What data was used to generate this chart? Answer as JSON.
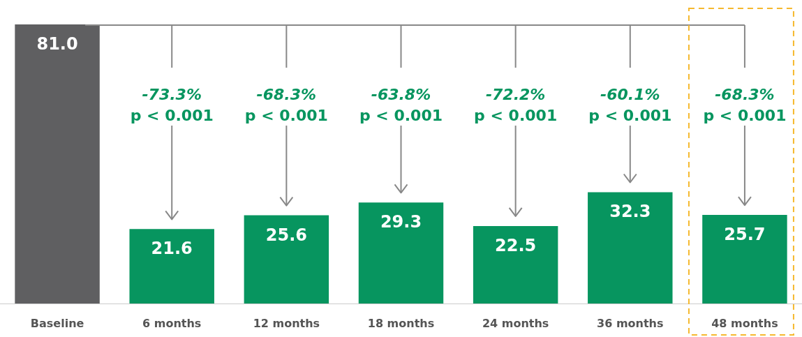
{
  "chart_data": {
    "type": "bar",
    "categories": [
      "Baseline",
      "6 months",
      "12 months",
      "18 months",
      "24 months",
      "36 months",
      "48 months"
    ],
    "values": [
      81.0,
      21.6,
      25.6,
      29.3,
      22.5,
      32.3,
      25.7
    ],
    "value_labels": [
      "81.0",
      "21.6",
      "25.6",
      "29.3",
      "22.5",
      "32.3",
      "25.7"
    ],
    "colors": [
      "#5f5f61",
      "#07955f",
      "#07955f",
      "#07955f",
      "#07955f",
      "#07955f",
      "#07955f"
    ],
    "annotations": [
      {
        "text": "-73.3%",
        "x": "6 months"
      },
      {
        "text": "p < 0.001",
        "x": "6 months"
      },
      {
        "text": "-68.3%",
        "x": "12 months"
      },
      {
        "text": "p < 0.001",
        "x": "12 months"
      },
      {
        "text": "-63.8%",
        "x": "18 months"
      },
      {
        "text": "p < 0.001",
        "x": "18 months"
      },
      {
        "text": "-72.2%",
        "x": "24 months"
      },
      {
        "text": "p < 0.001",
        "x": "24 months"
      },
      {
        "text": "-60.1%",
        "x": "36 months"
      },
      {
        "text": "p < 0.001",
        "x": "36 months"
      },
      {
        "text": "-68.3%",
        "x": "48 months"
      },
      {
        "text": "p < 0.001",
        "x": "48 months"
      }
    ]
  }
}
